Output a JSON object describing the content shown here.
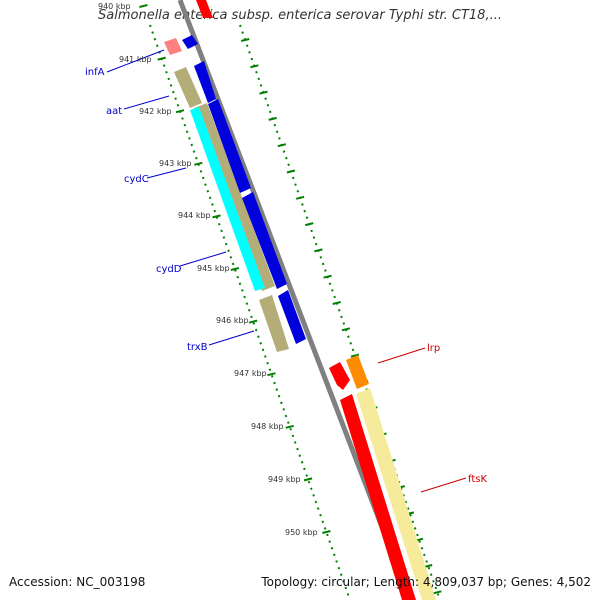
{
  "title": "Salmonella enterica subsp. enterica serovar Typhi str. CT18,...",
  "footer": {
    "accession": "Accession: NC_003198",
    "topology": "Topology: circular; Length: 4,809,037 bp; Genes: 4,502"
  },
  "scale": {
    "ticks": [
      "940 kbp",
      "941 kbp",
      "942 kbp",
      "943 kbp",
      "944 kbp",
      "945 kbp",
      "946 kbp",
      "947 kbp",
      "948 kbp",
      "949 kbp",
      "950 kbp"
    ]
  },
  "genes": [
    {
      "name": "infA",
      "color": "#0000cc"
    },
    {
      "name": "aat",
      "color": "#0000cc"
    },
    {
      "name": "cydC",
      "color": "#0000cc"
    },
    {
      "name": "cydD",
      "color": "#0000cc"
    },
    {
      "name": "trxB",
      "color": "#0000cc"
    },
    {
      "name": "lrp",
      "color": "#cc0000"
    },
    {
      "name": "ftsK",
      "color": "#cc0000"
    }
  ],
  "colors": {
    "forward_cds": "#0000dd",
    "reverse_cds": "#ff0000",
    "gene_khaki": "#b5ad78",
    "cyan": "#00ffff",
    "pale_yellow": "#f5eb9a",
    "orange": "#ff8c00",
    "pink": "#ff8080",
    "backbone": "#808080",
    "dots": "#006600"
  }
}
